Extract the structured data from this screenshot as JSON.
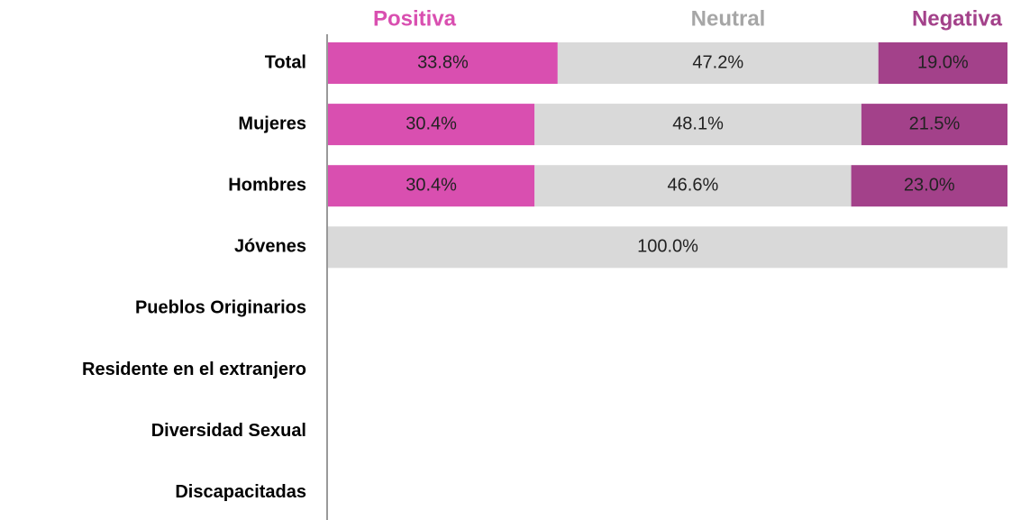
{
  "chart_data": {
    "type": "stacked_bar_horizontal",
    "categories": [
      "Total",
      "Mujeres",
      "Hombres",
      "Jóvenes",
      "Pueblos Originarios",
      "Residente en el extranjero",
      "Diversidad Sexual",
      "Discapacitadas"
    ],
    "series": [
      {
        "name": "Positiva",
        "color": "#d94fb0",
        "legend_color": "#d94fb0",
        "values": [
          33.8,
          30.4,
          30.4,
          null,
          null,
          null,
          null,
          null
        ],
        "value_labels": [
          "33.8%",
          "30.4%",
          "30.4%",
          null,
          null,
          null,
          null,
          null
        ]
      },
      {
        "name": "Neutral",
        "color": "#d9d9d9",
        "legend_color": "#a6a6a6",
        "values": [
          47.2,
          48.1,
          46.6,
          100.0,
          null,
          null,
          null,
          null
        ],
        "value_labels": [
          "47.2%",
          "48.1%",
          "46.6%",
          "100.0%",
          null,
          null,
          null,
          null
        ]
      },
      {
        "name": "Negativa",
        "color": "#a3418a",
        "legend_color": "#a3418a",
        "values": [
          19.0,
          21.5,
          23.0,
          null,
          null,
          null,
          null,
          null
        ],
        "value_labels": [
          "19.0%",
          "21.5%",
          "23.0%",
          null,
          null,
          null,
          null,
          null
        ]
      }
    ],
    "xlim": [
      0,
      100
    ]
  }
}
